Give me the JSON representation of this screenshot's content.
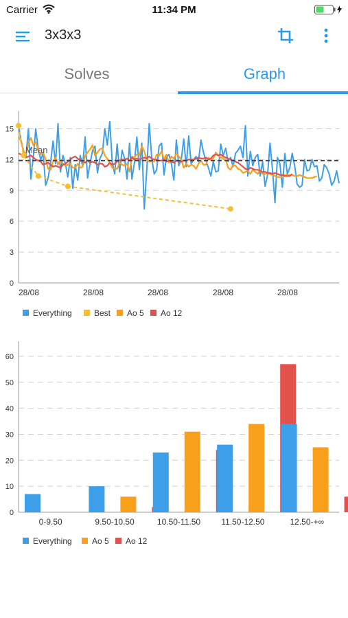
{
  "status_bar": {
    "carrier": "Carrier",
    "time": "11:34 PM"
  },
  "app_bar": {
    "title": "3x3x3"
  },
  "tabs": [
    {
      "label": "Solves",
      "active": false
    },
    {
      "label": "Graph",
      "active": true
    }
  ],
  "colors": {
    "accent": "#2b9ae6",
    "everything": "#3d9ee9",
    "best": "#f5c02f",
    "ao5": "#f8a01c",
    "ao12": "#e2514c",
    "mean": "#444444"
  },
  "chart_data": [
    {
      "type": "line",
      "x_tick_labels": [
        "28/08",
        "28/08",
        "28/08",
        "28/08",
        "28/08"
      ],
      "ylim": [
        0,
        16.5
      ],
      "y_ticks": [
        0,
        3,
        6,
        9,
        12,
        15
      ],
      "grid": true,
      "mean": {
        "label": "Mean",
        "value": 11.9
      },
      "legend": [
        "Everything",
        "Best",
        "Ao 5",
        "Ao 12"
      ],
      "legend_position": "bottom-left",
      "series": [
        {
          "name": "Everything",
          "values": [
            15.3,
            13.9,
            12.9,
            12.3,
            15.0,
            10.1,
            12.3,
            15.0,
            13.0,
            12.0,
            12.6,
            9.5,
            10.2,
            11.7,
            13.8,
            11.6,
            15.5,
            10.8,
            12.4,
            11.6,
            10.3,
            12.2,
            9.2,
            11.5,
            10.0,
            12.4,
            11.4,
            14.2,
            10.2,
            11.6,
            12.9,
            13.3,
            10.7,
            12.1,
            12.6,
            15.0,
            13.4,
            15.7,
            11.8,
            10.6,
            13.5,
            10.8,
            12.9,
            12.1,
            10.1,
            13.6,
            10.1,
            11.7,
            14.2,
            11.0,
            13.6,
            7.2,
            11.0,
            15.5,
            12.2,
            10.6,
            11.0,
            13.3,
            13.6,
            10.5,
            12.2,
            12.5,
            11.6,
            10.0,
            13.9,
            11.4,
            12.0,
            14.0,
            11.3,
            14.3,
            11.6,
            12.0,
            12.3,
            11.8,
            13.9,
            12.7,
            11.9,
            11.2,
            10.4,
            11.8,
            10.8,
            10.9,
            13.5,
            12.4,
            13.1,
            11.8,
            12.2,
            11.3,
            12.6,
            12.9,
            13.3,
            12.2,
            15.3,
            10.4,
            12.8,
            11.4,
            12.2,
            12.5,
            10.4,
            11.8,
            9.4,
            10.5,
            13.6,
            11.0,
            7.8,
            12.2,
            11.6,
            9.3,
            12.6,
            10.6,
            11.2,
            12.6,
            11.4,
            9.6,
            9.3,
            9.5,
            12.0,
            10.9,
            11.0,
            12.0,
            11.3,
            11.4,
            9.9,
            10.2,
            11.5,
            11.2,
            10.6,
            9.5,
            9.9,
            10.9,
            9.7
          ]
        },
        {
          "name": "Best",
          "values": [
            15.3,
            12.4,
            10.4,
            9.4,
            7.2
          ],
          "indices": [
            0,
            2,
            8,
            20,
            86
          ]
        },
        {
          "name": "Ao 5",
          "values": [
            14.2,
            13.8,
            12.8,
            12.5,
            13.6,
            14.1,
            13.4,
            13.7,
            12.9,
            12.5,
            12.7,
            12.0,
            11.1,
            11.0,
            11.8,
            12.2,
            11.5,
            12.0,
            11.6,
            11.4,
            11.5,
            11.6,
            11.2,
            11.2,
            11.6,
            11.2,
            11.3,
            12.4,
            12.7,
            13.0,
            13.4,
            12.4,
            12.7,
            13.0,
            13.1,
            12.4,
            12.1,
            11.7,
            11.2,
            11.1,
            11.1,
            11.7,
            11.5,
            11.4,
            11.6,
            10.8,
            12.3,
            12.2,
            12.5,
            12.4,
            13.3,
            12.8,
            12.0,
            11.8,
            11.8,
            11.8,
            12.5,
            12.4,
            12.8,
            12.0,
            12.5,
            11.7,
            12.3,
            12.1,
            12.6,
            12.3,
            12.0,
            11.2,
            11.6,
            11.3,
            11.5,
            11.4,
            11.1,
            11.6,
            11.9,
            11.5,
            11.5,
            12.2,
            12.0,
            12.1,
            12.7,
            12.4,
            12.2,
            12.1,
            12.0,
            11.2,
            11.0,
            11.5,
            11.4,
            11.1,
            11.0,
            10.7,
            10.8,
            10.9,
            10.6,
            11.0,
            10.8,
            10.6,
            11.0,
            10.6,
            10.6,
            10.6,
            10.6,
            10.5,
            10.4,
            10.3,
            10.3,
            10.3,
            10.5,
            10.5,
            10.5,
            10.5,
            10.4,
            10.4,
            10.5,
            10.4,
            10.3,
            10.2,
            10.2,
            10.2,
            10.3,
            10.4
          ]
        },
        {
          "name": "Ao 12",
          "values": [
            12.6,
            12.5,
            12.3,
            12.2,
            12.3,
            12.4,
            12.2,
            12.0,
            11.9,
            11.8,
            11.5,
            11.6,
            11.7,
            11.5,
            11.3,
            11.4,
            11.3,
            11.2,
            11.5,
            11.6,
            11.8,
            12.0,
            12.2,
            12.3,
            12.1,
            11.9,
            11.8,
            11.7,
            11.9,
            11.7,
            11.8,
            11.7,
            11.5,
            11.6,
            11.6,
            11.3,
            11.4,
            11.7,
            11.5,
            11.6,
            11.8,
            11.9,
            12.0,
            12.0,
            12.1,
            11.9,
            12.2,
            12.0,
            12.1,
            12.0,
            12.1,
            12.2,
            12.1,
            12.3,
            12.1,
            12.0,
            12.0,
            11.9,
            11.9,
            12.0,
            11.8,
            11.9,
            11.8,
            11.7,
            11.9,
            11.8,
            11.8,
            11.9,
            11.9,
            12.0,
            12.0,
            12.0,
            12.1,
            12.2,
            12.1,
            12.1,
            12.2,
            12.0,
            12.1,
            12.4,
            12.5,
            12.4,
            12.5,
            12.3,
            12.2,
            12.1,
            12.0,
            11.9,
            11.8,
            11.7,
            11.5,
            11.3,
            11.1,
            11.0,
            11.2,
            11.1,
            11.0,
            11.0,
            10.9,
            10.8,
            10.8,
            10.7,
            10.7,
            10.6,
            10.7,
            10.6,
            10.5,
            10.5,
            10.4,
            10.4,
            10.4,
            10.6
          ]
        }
      ]
    },
    {
      "type": "bar",
      "categories": [
        "0-9.50",
        "9.50-10.50",
        "10.50-11.50",
        "11.50-12.50",
        "12.50-+∞"
      ],
      "ylim": [
        0,
        65
      ],
      "y_ticks": [
        0,
        10,
        20,
        30,
        40,
        50,
        60
      ],
      "grid": true,
      "legend_position": "bottom-left",
      "series": [
        {
          "name": "Everything",
          "values": [
            7,
            10,
            23,
            26,
            34
          ]
        },
        {
          "name": "Ao 5",
          "values": [
            0,
            6,
            31,
            34,
            25
          ]
        },
        {
          "name": "Ao 12",
          "values": [
            0,
            2,
            24,
            57,
            6
          ]
        }
      ]
    }
  ]
}
